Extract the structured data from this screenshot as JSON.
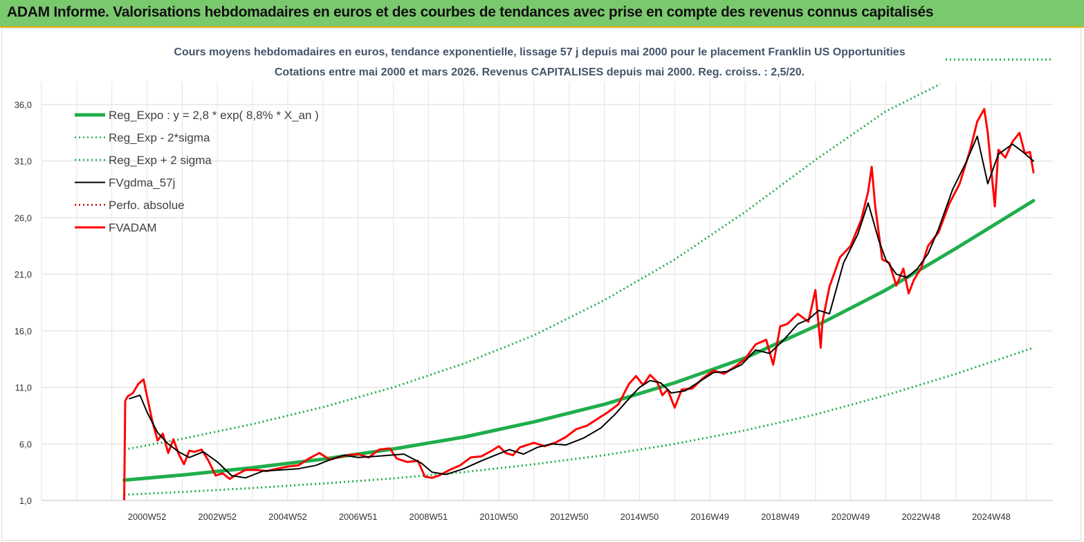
{
  "banner": {
    "title": "ADAM Informe. Valorisations hebdomadaires en euros et des courbes de tendances avec prise en compte des revenus connus capitalisés"
  },
  "colors": {
    "banner_bg": "#7bc96f",
    "banner_border": "#e8b400",
    "regression": "#1fae4b",
    "price": "#ff0000",
    "moving_average": "#000000",
    "title_text": "#44546a"
  },
  "chart_data": {
    "type": "line",
    "title": "Cours moyens hebdomadaires en euros, tendance exponentielle, lissage 57 j depuis mai 2000 pour le placement Franklin US Opportunities",
    "subtitle": "Cotations entre mai 2000 et mars 2026.  Revenus CAPITALISES  depuis mai  2000. Reg. croiss. : 2,5/20.",
    "xlabel": "",
    "ylabel": "",
    "ylim": [
      1,
      37
    ],
    "xlim": [
      1998.0,
      2026.75
    ],
    "grid": true,
    "legend_position": "top-left",
    "y_ticks": [
      "1,0",
      "6,0",
      "11,0",
      "16,0",
      "21,0",
      "26,0",
      "31,0",
      "36,0"
    ],
    "y_tick_values": [
      1,
      6,
      11,
      16,
      21,
      26,
      31,
      36
    ],
    "x_ticks": [
      "2000W52",
      "2002W52",
      "2004W52",
      "2006W51",
      "2008W51",
      "2010W50",
      "2012W50",
      "2014W50",
      "2016W49",
      "2018W49",
      "2020W49",
      "2022W48",
      "2024W48"
    ],
    "x_tick_values": [
      2001.0,
      2003.0,
      2005.0,
      2007.0,
      2009.0,
      2011.0,
      2013.0,
      2015.0,
      2017.0,
      2019.0,
      2021.0,
      2023.0,
      2025.0
    ],
    "series": [
      {
        "name": "Reg_Expo : y = 2,8 * exp( 8,8% *  X_an )",
        "style": "solid-thick",
        "color": "#1fae4b",
        "x": [
          2000.35,
          2002,
          2004,
          2006,
          2008,
          2010,
          2012,
          2014,
          2016,
          2018,
          2020,
          2022,
          2024,
          2026.2
        ],
        "values": [
          2.8,
          3.25,
          3.9,
          4.65,
          5.55,
          6.6,
          7.95,
          9.5,
          11.4,
          13.6,
          16.4,
          19.6,
          23.3,
          27.5
        ]
      },
      {
        "name": "Reg_Exp - 2*sigma",
        "style": "dotted",
        "color": "#1fae4b",
        "x": [
          2000.35,
          2002,
          2004,
          2006,
          2008,
          2010,
          2012,
          2014,
          2016,
          2018,
          2020,
          2022,
          2024,
          2026.2
        ],
        "values": [
          1.5,
          1.75,
          2.1,
          2.5,
          2.95,
          3.5,
          4.2,
          5.0,
          6.0,
          7.2,
          8.6,
          10.3,
          12.2,
          14.5
        ]
      },
      {
        "name": "Reg_Exp + 2 sigma",
        "style": "dotted",
        "color": "#1fae4b",
        "x": [
          2000.35,
          2002,
          2004,
          2006,
          2008,
          2010,
          2012,
          2014,
          2016,
          2018,
          2020,
          2022,
          2023.55
        ],
        "values": [
          5.5,
          6.45,
          7.75,
          9.25,
          11.0,
          13.1,
          15.6,
          18.7,
          22.3,
          26.5,
          31.1,
          35.4,
          37.8
        ]
      },
      {
        "name": "FVgdma_57j",
        "style": "solid",
        "color": "#000000",
        "x": [
          2000.5,
          2000.8,
          2001.0,
          2001.3,
          2001.6,
          2001.9,
          2002.2,
          2002.6,
          2003.0,
          2003.4,
          2003.8,
          2004.3,
          2004.8,
          2005.3,
          2005.8,
          2006.2,
          2006.6,
          2007.0,
          2007.5,
          2007.9,
          2008.3,
          2008.8,
          2009.1,
          2009.5,
          2010.0,
          2010.5,
          2010.9,
          2011.3,
          2011.7,
          2012.1,
          2012.5,
          2012.9,
          2013.4,
          2013.9,
          2014.3,
          2014.7,
          2015.0,
          2015.3,
          2015.6,
          2015.9,
          2016.3,
          2016.7,
          2017.1,
          2017.5,
          2017.9,
          2018.3,
          2018.7,
          2019.1,
          2019.5,
          2019.8,
          2020.1,
          2020.4,
          2020.8,
          2021.2,
          2021.5,
          2021.8,
          2022.0,
          2022.3,
          2022.6,
          2022.9,
          2023.2,
          2023.5,
          2023.9,
          2024.3,
          2024.6,
          2024.9,
          2025.2,
          2025.6,
          2025.9,
          2026.2
        ],
        "values": [
          10.0,
          10.3,
          8.8,
          7.0,
          6.0,
          5.3,
          4.8,
          5.3,
          4.4,
          3.2,
          3.0,
          3.6,
          3.7,
          3.8,
          4.1,
          4.6,
          5.0,
          4.8,
          4.9,
          5.0,
          5.1,
          4.3,
          3.5,
          3.3,
          3.8,
          4.5,
          5.0,
          5.5,
          5.1,
          5.7,
          6.0,
          5.9,
          6.5,
          7.4,
          8.6,
          10.0,
          11.0,
          11.6,
          11.4,
          10.5,
          10.7,
          11.5,
          12.3,
          12.4,
          13.0,
          14.3,
          14.0,
          15.2,
          16.6,
          17.0,
          17.8,
          17.5,
          22.0,
          24.5,
          27.3,
          24.0,
          22.3,
          21.0,
          20.7,
          21.5,
          22.8,
          25.0,
          28.5,
          31.0,
          33.2,
          29.0,
          31.6,
          32.5,
          31.8,
          31.0
        ]
      },
      {
        "name": "Perfo. absolue",
        "style": "dotted",
        "color": "#c00000",
        "x": [
          2025.0,
          2026.0
        ],
        "values": [
          36.6,
          36.6
        ]
      },
      {
        "name": "FVADAM",
        "style": "solid-thick",
        "color": "#ff0000",
        "x": [
          2000.35,
          2000.38,
          2000.45,
          2000.6,
          2000.75,
          2000.9,
          2001.0,
          2001.15,
          2001.3,
          2001.45,
          2001.6,
          2001.75,
          2001.9,
          2002.05,
          2002.2,
          2002.35,
          2002.55,
          2002.75,
          2002.95,
          2003.15,
          2003.35,
          2003.55,
          2003.8,
          2004.1,
          2004.4,
          2004.7,
          2005.0,
          2005.3,
          2005.6,
          2005.9,
          2006.2,
          2006.4,
          2006.7,
          2007.0,
          2007.3,
          2007.6,
          2007.9,
          2008.1,
          2008.4,
          2008.7,
          2008.9,
          2009.1,
          2009.3,
          2009.6,
          2009.9,
          2010.2,
          2010.5,
          2010.8,
          2011.0,
          2011.2,
          2011.4,
          2011.6,
          2011.8,
          2012.0,
          2012.3,
          2012.6,
          2012.9,
          2013.2,
          2013.5,
          2013.8,
          2014.1,
          2014.4,
          2014.7,
          2014.9,
          2015.1,
          2015.3,
          2015.5,
          2015.65,
          2015.8,
          2016.0,
          2016.2,
          2016.5,
          2016.8,
          2017.1,
          2017.4,
          2017.7,
          2018.0,
          2018.3,
          2018.6,
          2018.8,
          2019.0,
          2019.2,
          2019.5,
          2019.8,
          2020.0,
          2020.15,
          2020.2,
          2020.4,
          2020.7,
          2021.0,
          2021.3,
          2021.5,
          2021.6,
          2021.7,
          2021.9,
          2022.1,
          2022.3,
          2022.5,
          2022.65,
          2022.8,
          2023.0,
          2023.2,
          2023.5,
          2023.8,
          2024.1,
          2024.4,
          2024.6,
          2024.8,
          2024.9,
          2025.0,
          2025.1,
          2025.2,
          2025.4,
          2025.6,
          2025.8,
          2025.95,
          2026.1,
          2026.2
        ],
        "values": [
          1.0,
          9.8,
          10.2,
          10.5,
          11.3,
          11.7,
          10.2,
          8.0,
          6.3,
          6.9,
          5.2,
          6.4,
          5.1,
          4.2,
          5.4,
          5.3,
          5.5,
          4.5,
          3.2,
          3.4,
          2.9,
          3.3,
          3.7,
          3.7,
          3.6,
          3.8,
          4.0,
          4.1,
          4.7,
          5.2,
          4.6,
          4.8,
          5.0,
          5.1,
          4.8,
          5.5,
          5.6,
          4.7,
          4.4,
          4.5,
          3.1,
          3.0,
          3.2,
          3.7,
          4.1,
          4.8,
          4.9,
          5.4,
          5.8,
          5.2,
          5.0,
          5.7,
          5.9,
          6.1,
          5.8,
          6.1,
          6.6,
          7.3,
          7.6,
          8.2,
          8.8,
          9.5,
          11.3,
          12.0,
          11.2,
          12.1,
          11.5,
          10.3,
          10.8,
          9.2,
          10.8,
          10.9,
          11.8,
          12.5,
          12.2,
          12.8,
          13.5,
          14.8,
          15.2,
          13.0,
          16.4,
          16.6,
          17.5,
          16.8,
          19.6,
          14.5,
          16.8,
          19.9,
          22.5,
          23.5,
          25.8,
          28.3,
          30.5,
          27.0,
          22.3,
          22.0,
          20.0,
          21.5,
          19.3,
          20.5,
          21.5,
          23.5,
          24.7,
          27.2,
          29.0,
          32.0,
          34.5,
          35.6,
          33.5,
          30.2,
          27.0,
          32.0,
          31.3,
          32.7,
          33.5,
          31.7,
          31.8,
          30.0
        ]
      }
    ]
  }
}
